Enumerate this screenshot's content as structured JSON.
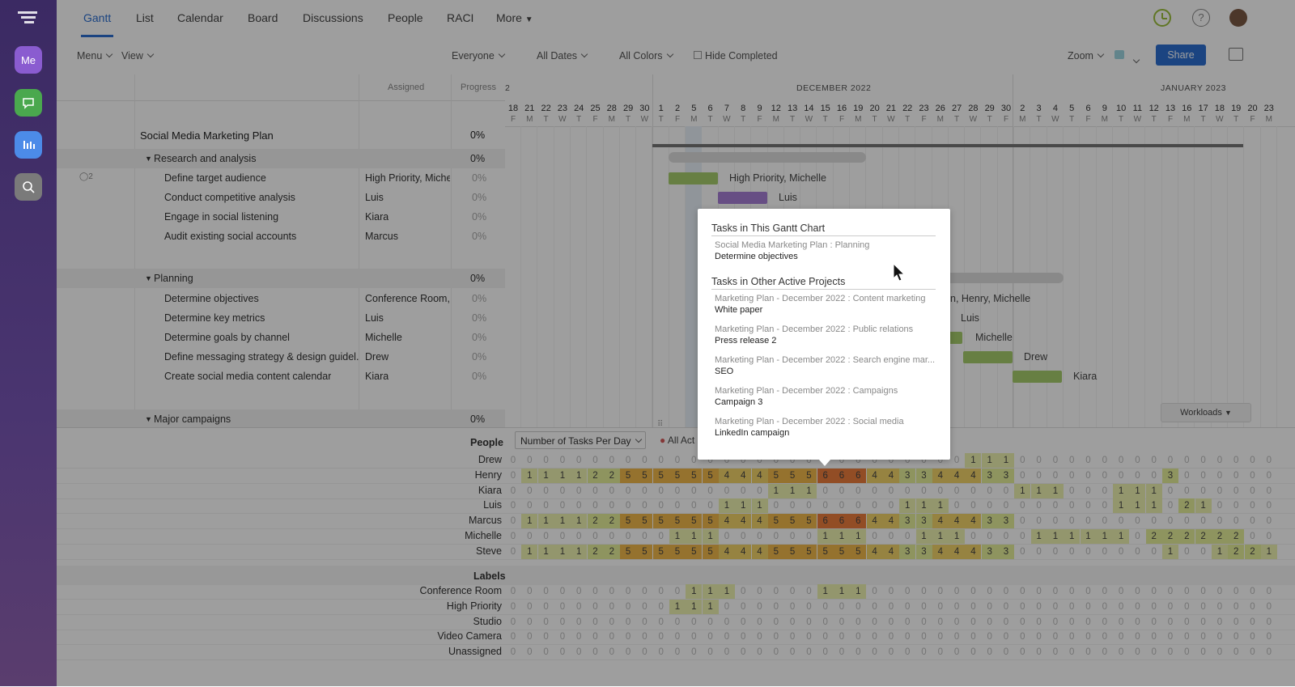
{
  "rail": {
    "me_label": "Me"
  },
  "nav": {
    "tabs": [
      "Gantt",
      "List",
      "Calendar",
      "Board",
      "Discussions",
      "People",
      "RACI",
      "More"
    ],
    "active": "Gantt"
  },
  "toolbar": {
    "menu": "Menu",
    "view": "View",
    "everyone": "Everyone",
    "all_dates": "All Dates",
    "all_colors": "All Colors",
    "hide_completed": "Hide Completed",
    "zoom": "Zoom",
    "share": "Share"
  },
  "grid": {
    "assigned_header": "Assigned",
    "progress_header": "Progress",
    "project": {
      "name": "Social Media Marketing Plan",
      "progress": "0%"
    },
    "groups": [
      {
        "name": "Research and analysis",
        "progress": "0%",
        "comments": "2",
        "tasks": [
          {
            "name": "Define target audience",
            "assigned": "High Priority, Miche",
            "progress": "0%"
          },
          {
            "name": "Conduct competitive analysis",
            "assigned": "Luis",
            "progress": "0%"
          },
          {
            "name": "Engage in social listening",
            "assigned": "Kiara",
            "progress": "0%"
          },
          {
            "name": "Audit existing social accounts",
            "assigned": "Marcus",
            "progress": "0%"
          }
        ]
      },
      {
        "name": "Planning",
        "progress": "0%",
        "tasks": [
          {
            "name": "Determine objectives",
            "assigned": "Conference Room,",
            "progress": "0%"
          },
          {
            "name": "Determine key metrics",
            "assigned": "Luis",
            "progress": "0%"
          },
          {
            "name": "Determine goals by channel",
            "assigned": "Michelle",
            "progress": "0%"
          },
          {
            "name": "Define messaging strategy & design guidel...",
            "assigned": "Drew",
            "progress": "0%"
          },
          {
            "name": "Create social media content calendar",
            "assigned": "Kiara",
            "progress": "0%"
          }
        ]
      },
      {
        "name": "Major campaigns",
        "progress": "0%",
        "tasks": []
      }
    ]
  },
  "timeline": {
    "month_prev": "2",
    "month_dec": "DECEMBER 2022",
    "month_jan": "JANUARY 2023",
    "days": [
      "18",
      "21",
      "22",
      "23",
      "24",
      "25",
      "28",
      "29",
      "30",
      "1",
      "2",
      "5",
      "6",
      "7",
      "8",
      "9",
      "12",
      "13",
      "14",
      "15",
      "16",
      "19",
      "20",
      "21",
      "22",
      "23",
      "26",
      "27",
      "28",
      "29",
      "30",
      "2",
      "3",
      "4",
      "5",
      "6",
      "9",
      "10",
      "11",
      "12",
      "13",
      "16",
      "17",
      "18",
      "19",
      "20",
      "23"
    ],
    "weekdays": [
      "F",
      "M",
      "T",
      "W",
      "T",
      "F",
      "M",
      "T",
      "W",
      "T",
      "F",
      "M",
      "T",
      "W",
      "T",
      "F",
      "M",
      "T",
      "W",
      "T",
      "F",
      "M",
      "T",
      "W",
      "T",
      "F",
      "M",
      "T",
      "W",
      "T",
      "F",
      "M",
      "T",
      "W",
      "T",
      "F",
      "M",
      "T",
      "W",
      "T",
      "F",
      "M",
      "T",
      "W",
      "T",
      "F",
      "M"
    ],
    "bar_labels": [
      "High Priority, Michelle",
      "Luis",
      "n, Henry, Michelle",
      "Luis",
      "Michelle",
      "Drew",
      "Kiara"
    ],
    "workloads_label": "Workloads"
  },
  "workload": {
    "people_label": "People",
    "labels_label": "Labels",
    "metric": "Number of Tasks Per Day",
    "all_label": "All Act",
    "people": [
      {
        "name": "Drew",
        "values": [
          0,
          0,
          0,
          0,
          0,
          0,
          0,
          0,
          0,
          0,
          0,
          0,
          0,
          0,
          0,
          0,
          0,
          0,
          0,
          0,
          0,
          0,
          0,
          0,
          0,
          0,
          0,
          0,
          1,
          1,
          1,
          0,
          0,
          0,
          0,
          0,
          0,
          0,
          0,
          0,
          0,
          0,
          0,
          0,
          0,
          0,
          0
        ]
      },
      {
        "name": "Henry",
        "values": [
          0,
          1,
          1,
          1,
          1,
          2,
          2,
          5,
          5,
          5,
          5,
          5,
          5,
          4,
          4,
          4,
          5,
          5,
          5,
          6,
          6,
          6,
          4,
          4,
          3,
          3,
          4,
          4,
          4,
          3,
          3,
          0,
          0,
          0,
          0,
          0,
          0,
          0,
          0,
          0,
          3,
          0,
          0,
          0,
          0,
          0,
          0
        ]
      },
      {
        "name": "Kiara",
        "values": [
          0,
          0,
          0,
          0,
          0,
          0,
          0,
          0,
          0,
          0,
          0,
          0,
          0,
          0,
          0,
          0,
          1,
          1,
          1,
          0,
          0,
          0,
          0,
          0,
          0,
          0,
          0,
          0,
          0,
          0,
          0,
          1,
          1,
          1,
          0,
          0,
          0,
          1,
          1,
          1,
          0,
          0,
          0,
          0,
          0,
          0,
          0
        ]
      },
      {
        "name": "Luis",
        "values": [
          0,
          0,
          0,
          0,
          0,
          0,
          0,
          0,
          0,
          0,
          0,
          0,
          0,
          1,
          1,
          1,
          0,
          0,
          0,
          0,
          0,
          0,
          0,
          0,
          1,
          1,
          1,
          0,
          0,
          0,
          0,
          0,
          0,
          0,
          0,
          0,
          0,
          1,
          1,
          1,
          0,
          2,
          1,
          0,
          0,
          0,
          0
        ]
      },
      {
        "name": "Marcus",
        "values": [
          0,
          1,
          1,
          1,
          1,
          2,
          2,
          5,
          5,
          5,
          5,
          5,
          5,
          4,
          4,
          4,
          5,
          5,
          5,
          6,
          6,
          6,
          4,
          4,
          3,
          3,
          4,
          4,
          4,
          3,
          3,
          0,
          0,
          0,
          0,
          0,
          0,
          0,
          0,
          0,
          0,
          0,
          0,
          0,
          0,
          0,
          0
        ]
      },
      {
        "name": "Michelle",
        "values": [
          0,
          0,
          0,
          0,
          0,
          0,
          0,
          0,
          0,
          0,
          1,
          1,
          1,
          0,
          0,
          0,
          0,
          0,
          0,
          1,
          1,
          1,
          0,
          0,
          0,
          1,
          1,
          1,
          0,
          0,
          0,
          0,
          1,
          1,
          1,
          1,
          1,
          1,
          0,
          2,
          2,
          2,
          2,
          2,
          2,
          0,
          0
        ]
      },
      {
        "name": "Steve",
        "values": [
          0,
          1,
          1,
          1,
          1,
          2,
          2,
          5,
          5,
          5,
          5,
          5,
          5,
          4,
          4,
          4,
          5,
          5,
          5,
          5,
          5,
          5,
          4,
          4,
          3,
          3,
          4,
          4,
          4,
          3,
          3,
          0,
          0,
          0,
          0,
          0,
          0,
          0,
          0,
          0,
          1,
          0,
          0,
          1,
          2,
          2,
          1
        ]
      }
    ],
    "labels": [
      {
        "name": "Conference Room",
        "values": [
          0,
          0,
          0,
          0,
          0,
          0,
          0,
          0,
          0,
          0,
          0,
          1,
          1,
          1,
          0,
          0,
          0,
          0,
          0,
          1,
          1,
          1,
          0,
          0,
          0,
          0,
          0,
          0,
          0,
          0,
          0,
          0,
          0,
          0,
          0,
          0,
          0,
          0,
          0,
          0,
          0,
          0,
          0,
          0,
          0,
          0,
          0
        ]
      },
      {
        "name": "High Priority",
        "values": [
          0,
          0,
          0,
          0,
          0,
          0,
          0,
          0,
          0,
          0,
          1,
          1,
          1,
          0,
          0,
          0,
          0,
          0,
          0,
          0,
          0,
          0,
          0,
          0,
          0,
          0,
          0,
          0,
          0,
          0,
          0,
          0,
          0,
          0,
          0,
          0,
          0,
          0,
          0,
          0,
          0,
          0,
          0,
          0,
          0,
          0,
          0
        ]
      },
      {
        "name": "Studio",
        "values": [
          0,
          0,
          0,
          0,
          0,
          0,
          0,
          0,
          0,
          0,
          0,
          0,
          0,
          0,
          0,
          0,
          0,
          0,
          0,
          0,
          0,
          0,
          0,
          0,
          0,
          0,
          0,
          0,
          0,
          0,
          0,
          0,
          0,
          0,
          0,
          0,
          0,
          0,
          0,
          0,
          0,
          0,
          0,
          0,
          0,
          0,
          0
        ]
      },
      {
        "name": "Video Camera",
        "values": [
          0,
          0,
          0,
          0,
          0,
          0,
          0,
          0,
          0,
          0,
          0,
          0,
          0,
          0,
          0,
          0,
          0,
          0,
          0,
          0,
          0,
          0,
          0,
          0,
          0,
          0,
          0,
          0,
          0,
          0,
          0,
          0,
          0,
          0,
          0,
          0,
          0,
          0,
          0,
          0,
          0,
          0,
          0,
          0,
          0,
          0,
          0
        ]
      },
      {
        "name": "Unassigned",
        "values": [
          0,
          0,
          0,
          0,
          0,
          0,
          0,
          0,
          0,
          0,
          0,
          0,
          0,
          0,
          0,
          0,
          0,
          0,
          0,
          0,
          0,
          0,
          0,
          0,
          0,
          0,
          0,
          0,
          0,
          0,
          0,
          0,
          0,
          0,
          0,
          0,
          0,
          0,
          0,
          0,
          0,
          0,
          0,
          0,
          0,
          0,
          0
        ]
      }
    ]
  },
  "popup": {
    "this_heading": "Tasks in This Gantt Chart",
    "this_items": [
      {
        "project": "Social Media Marketing Plan : Planning",
        "task": "Determine objectives"
      }
    ],
    "other_heading": "Tasks in Other Active Projects",
    "other_items": [
      {
        "project": "Marketing Plan - December 2022 : Content marketing",
        "task": "White paper"
      },
      {
        "project": "Marketing Plan - December 2022 : Public relations",
        "task": "Press release 2"
      },
      {
        "project": "Marketing Plan - December 2022 : Search engine mar...",
        "task": "SEO"
      },
      {
        "project": "Marketing Plan - December 2022 : Campaigns",
        "task": "Campaign 3"
      },
      {
        "project": "Marketing Plan - December 2022 : Social media",
        "task": "LinkedIn campaign"
      }
    ]
  },
  "colors": {
    "accent": "#2d6fd0",
    "share_bg": "#2d6fd0",
    "green_bar": "#a7cd6d",
    "purple_bar": "#a77fd6",
    "heat_low": "#e6ef9a",
    "heat_mid": "#f1b84b",
    "heat_high": "#ec7c3c"
  }
}
